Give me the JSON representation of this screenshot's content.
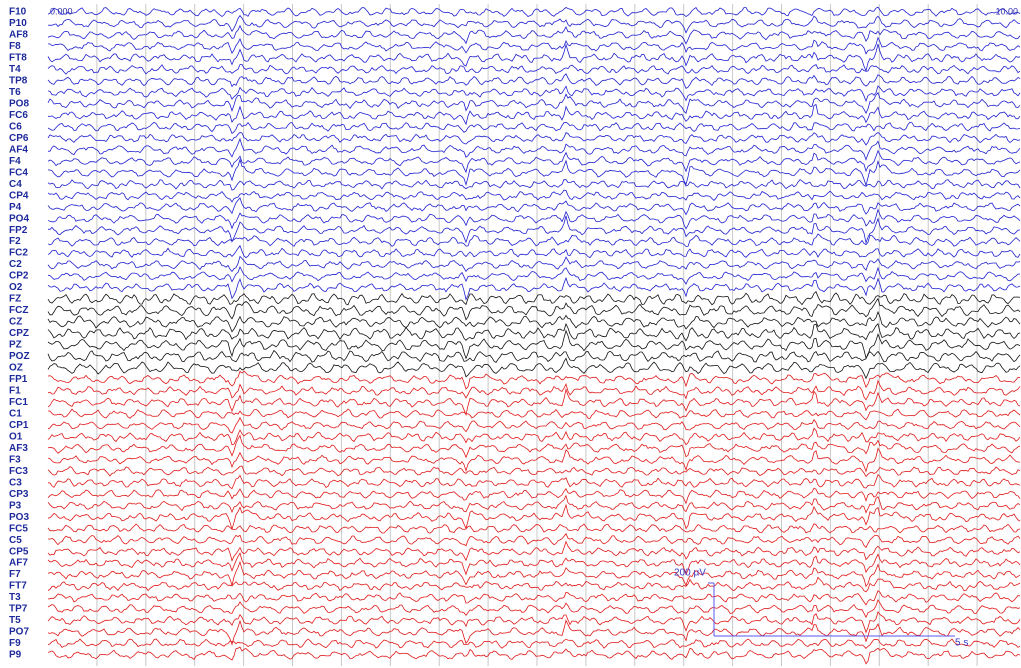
{
  "header": {
    "start_time": "0.000",
    "end_time": "10.00"
  },
  "channels": [
    {
      "label": "F10",
      "color": "#1f1fd0"
    },
    {
      "label": "P10",
      "color": "#1f1fd0"
    },
    {
      "label": "AF8",
      "color": "#1f1fd0"
    },
    {
      "label": "F8",
      "color": "#1f1fd0"
    },
    {
      "label": "FT8",
      "color": "#1f1fd0"
    },
    {
      "label": "T4",
      "color": "#1f1fd0"
    },
    {
      "label": "TP8",
      "color": "#1f1fd0"
    },
    {
      "label": "T6",
      "color": "#1f1fd0"
    },
    {
      "label": "PO8",
      "color": "#1f1fd0"
    },
    {
      "label": "FC6",
      "color": "#1f1fd0"
    },
    {
      "label": "C6",
      "color": "#1f1fd0"
    },
    {
      "label": "CP6",
      "color": "#1f1fd0"
    },
    {
      "label": "AF4",
      "color": "#1f1fd0"
    },
    {
      "label": "F4",
      "color": "#1f1fd0"
    },
    {
      "label": "FC4",
      "color": "#1f1fd0"
    },
    {
      "label": "C4",
      "color": "#1f1fd0"
    },
    {
      "label": "CP4",
      "color": "#1f1fd0"
    },
    {
      "label": "P4",
      "color": "#1f1fd0"
    },
    {
      "label": "PO4",
      "color": "#1f1fd0"
    },
    {
      "label": "FP2",
      "color": "#1f1fd0"
    },
    {
      "label": "F2",
      "color": "#1f1fd0"
    },
    {
      "label": "FC2",
      "color": "#1f1fd0"
    },
    {
      "label": "C2",
      "color": "#1f1fd0"
    },
    {
      "label": "CP2",
      "color": "#1f1fd0"
    },
    {
      "label": "O2",
      "color": "#1f1fd0"
    },
    {
      "label": "FZ",
      "color": "#111111"
    },
    {
      "label": "FCZ",
      "color": "#111111"
    },
    {
      "label": "CZ",
      "color": "#111111"
    },
    {
      "label": "CPZ",
      "color": "#111111"
    },
    {
      "label": "PZ",
      "color": "#111111"
    },
    {
      "label": "POZ",
      "color": "#111111"
    },
    {
      "label": "OZ",
      "color": "#111111"
    },
    {
      "label": "FP1",
      "color": "#e01818"
    },
    {
      "label": "F1",
      "color": "#e01818"
    },
    {
      "label": "FC1",
      "color": "#e01818"
    },
    {
      "label": "C1",
      "color": "#e01818"
    },
    {
      "label": "CP1",
      "color": "#e01818"
    },
    {
      "label": "O1",
      "color": "#e01818"
    },
    {
      "label": "AF3",
      "color": "#e01818"
    },
    {
      "label": "F3",
      "color": "#e01818"
    },
    {
      "label": "FC3",
      "color": "#e01818"
    },
    {
      "label": "C3",
      "color": "#e01818"
    },
    {
      "label": "CP3",
      "color": "#e01818"
    },
    {
      "label": "P3",
      "color": "#e01818"
    },
    {
      "label": "PO3",
      "color": "#e01818"
    },
    {
      "label": "FC5",
      "color": "#e01818"
    },
    {
      "label": "C5",
      "color": "#e01818"
    },
    {
      "label": "CP5",
      "color": "#e01818"
    },
    {
      "label": "AF7",
      "color": "#e01818"
    },
    {
      "label": "F7",
      "color": "#e01818"
    },
    {
      "label": "FT7",
      "color": "#e01818"
    },
    {
      "label": "T3",
      "color": "#e01818"
    },
    {
      "label": "TP7",
      "color": "#e01818"
    },
    {
      "label": "T5",
      "color": "#e01818"
    },
    {
      "label": "PO7",
      "color": "#e01818"
    },
    {
      "label": "F9",
      "color": "#e01818"
    },
    {
      "label": "P9",
      "color": "#e01818"
    }
  ],
  "scale_bar": {
    "amplitude_label": "200 µV",
    "time_label": "5 s"
  }
}
